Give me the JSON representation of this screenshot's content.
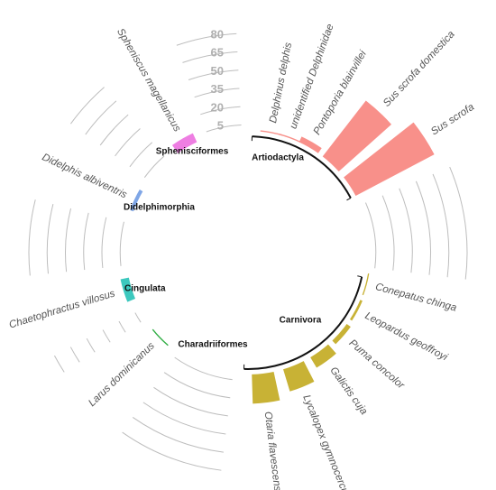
{
  "chart_data": {
    "type": "circular-bar",
    "title": "",
    "scale_ticks": [
      "80",
      "65",
      "50",
      "35",
      "20",
      "5"
    ],
    "scale_values": [
      80,
      65,
      50,
      35,
      20,
      5
    ],
    "ylim": [
      0,
      90
    ],
    "groups": [
      {
        "name": "Artiodactyla",
        "color": "#F8908A",
        "start_deg": 2,
        "end_deg": 62,
        "species": [
          {
            "name": "Delphinus delphis",
            "value": 1,
            "center_deg": 11
          },
          {
            "name": "unidentified Delphinidae",
            "value": 1,
            "center_deg": 20
          },
          {
            "name": "Pontoporia blainvillei",
            "value": 5,
            "center_deg": 30
          },
          {
            "name": "Sus scrofa domestica",
            "value": 58,
            "center_deg": 43
          },
          {
            "name": "Sus scrofa",
            "value": 73,
            "center_deg": 57
          }
        ]
      },
      {
        "name": "Carnivora",
        "color": "#C8B235",
        "start_deg": 102,
        "end_deg": 182,
        "species": [
          {
            "name": "Conepatus chinga",
            "value": 1,
            "center_deg": 105
          },
          {
            "name": "Leopardus geoffroyi",
            "value": 2,
            "center_deg": 118
          },
          {
            "name": "Puma concolor",
            "value": 4,
            "center_deg": 131
          },
          {
            "name": "Galictis cuja",
            "value": 10,
            "center_deg": 144
          },
          {
            "name": "Lycalopex gymnocercus",
            "value": 19,
            "center_deg": 158
          },
          {
            "name": "Otaria flavescens",
            "value": 24,
            "center_deg": 173
          }
        ]
      },
      {
        "name": "Charadriiformes",
        "color": "#2EAD42",
        "start_deg": 220,
        "end_deg": 232,
        "species": [
          {
            "name": "Larus dominicanus",
            "value": 1,
            "center_deg": 226
          }
        ]
      },
      {
        "name": "Cingulata",
        "color": "#3CC8BE",
        "start_deg": 247,
        "end_deg": 259,
        "species": [
          {
            "name": "Chaetophractus villosus",
            "value": 7,
            "center_deg": 253
          }
        ]
      },
      {
        "name": "Didelphimorphia",
        "color": "#7FA6E6",
        "start_deg": 289,
        "end_deg": 301,
        "species": [
          {
            "name": "Didelphis albiventris",
            "value": 3,
            "center_deg": 295
          }
        ]
      },
      {
        "name": "Sphenisciformes",
        "color": "#EE7EE2",
        "start_deg": 324,
        "end_deg": 336,
        "species": [
          {
            "name": "Spheniscus magellanicus",
            "value": 8,
            "center_deg": 330
          }
        ]
      }
    ],
    "grid": true,
    "legend": "none"
  }
}
